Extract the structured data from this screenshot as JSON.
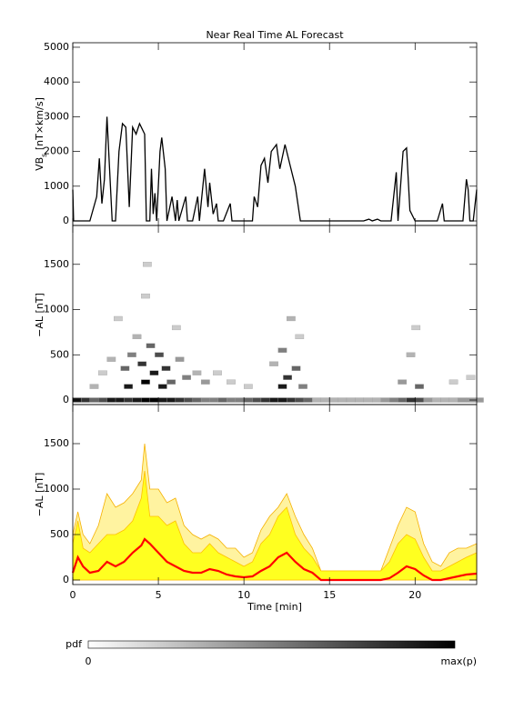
{
  "chart_data": [
    {
      "type": "line",
      "title": "Near Real Time AL Forecast",
      "ylabel": {
        "main": "VB",
        "sub": "s",
        "unit": " [nT×km/s]"
      },
      "xlim": [
        0,
        23.6
      ],
      "xticks": [
        0,
        5,
        10,
        15,
        20
      ],
      "ylim": [
        -130,
        5130
      ],
      "yticks": [
        0,
        1000,
        2000,
        3000,
        4000,
        5000
      ],
      "color": "#000000",
      "x": [
        0,
        0.05,
        1.0,
        1.4,
        1.55,
        1.7,
        1.85,
        2.0,
        2.2,
        2.3,
        2.5,
        2.7,
        2.9,
        3.1,
        3.3,
        3.5,
        3.7,
        3.9,
        4.2,
        4.3,
        4.5,
        4.6,
        4.7,
        4.8,
        4.9,
        5.1,
        5.2,
        5.4,
        5.5,
        5.8,
        6.0,
        6.1,
        6.2,
        6.6,
        6.7,
        7.0,
        7.3,
        7.4,
        7.7,
        7.9,
        8.0,
        8.2,
        8.4,
        8.5,
        8.8,
        9.2,
        9.3,
        10.0,
        10.5,
        10.6,
        10.8,
        11.0,
        11.2,
        11.4,
        11.6,
        11.9,
        12.1,
        12.4,
        12.7,
        13.0,
        13.3,
        17.0,
        17.3,
        17.5,
        17.8,
        18.0,
        18.6,
        18.9,
        19.0,
        19.3,
        19.5,
        19.7,
        20.0,
        21.3,
        21.6,
        21.7,
        22.8,
        23.0,
        23.1,
        23.2,
        23.4,
        23.6
      ],
      "values": [
        900,
        0,
        0,
        700,
        1800,
        500,
        1200,
        3000,
        1000,
        0,
        0,
        2000,
        2800,
        2700,
        400,
        2700,
        2500,
        2800,
        2500,
        0,
        0,
        1500,
        200,
        800,
        0,
        2000,
        2400,
        1500,
        0,
        700,
        0,
        600,
        0,
        700,
        0,
        0,
        700,
        0,
        1500,
        400,
        1100,
        200,
        500,
        0,
        0,
        500,
        0,
        0,
        0,
        700,
        400,
        1600,
        1800,
        1100,
        2000,
        2200,
        1500,
        2200,
        1600,
        1000,
        0,
        0,
        50,
        0,
        50,
        0,
        0,
        1400,
        0,
        2000,
        2100,
        300,
        0,
        0,
        500,
        0,
        0,
        1200,
        900,
        0,
        0,
        900
      ]
    },
    {
      "type": "heatmap",
      "ylabel": "−AL [nT]",
      "xlim": [
        0,
        23.6
      ],
      "xticks": [
        0,
        5,
        10,
        15,
        20
      ],
      "ylim": [
        -50,
        1930
      ],
      "yticks": [
        0,
        500,
        1000,
        1500
      ],
      "cells": {
        "x": [
          0,
          0.5,
          1,
          1.5,
          2,
          2.5,
          3,
          3.5,
          4,
          4.5,
          5,
          5.5,
          6,
          6.5,
          7,
          7.5,
          8,
          8.5,
          9,
          9.5,
          10,
          10.5,
          11,
          11.5,
          12,
          12.5,
          13,
          13.5,
          14,
          14.5,
          15,
          15.5,
          16,
          16.5,
          17,
          17.5,
          18,
          18.5,
          19,
          19.5,
          20,
          20.5,
          21,
          21.5,
          22,
          22.5,
          23,
          23.5,
          1,
          1.5,
          2,
          2.4,
          2.8,
          3.2,
          3.5,
          3.8,
          4.0,
          4.1,
          4.3,
          4.5,
          4.8,
          5.2,
          5.5,
          5.8,
          6.0,
          6.4,
          7,
          7.5,
          8.2,
          9,
          10,
          11.5,
          12,
          12.3,
          12.5,
          12.8,
          13.2,
          13,
          19,
          19.5,
          19.8,
          20,
          22,
          23,
          3,
          4,
          5,
          12
        ],
        "y": [
          0,
          0,
          0,
          0,
          0,
          0,
          0,
          0,
          0,
          0,
          0,
          0,
          0,
          0,
          0,
          0,
          0,
          0,
          0,
          0,
          0,
          0,
          0,
          0,
          0,
          0,
          0,
          0,
          0,
          0,
          0,
          0,
          0,
          0,
          0,
          0,
          0,
          0,
          0,
          0,
          0,
          0,
          0,
          0,
          0,
          0,
          0,
          0,
          150,
          300,
          450,
          900,
          350,
          500,
          700,
          400,
          1150,
          1500,
          600,
          300,
          500,
          350,
          200,
          800,
          450,
          250,
          300,
          200,
          300,
          200,
          150,
          400,
          550,
          250,
          900,
          350,
          150,
          700,
          200,
          500,
          800,
          150,
          200,
          250,
          150,
          200,
          150,
          150
        ],
        "p": [
          0.9,
          0.8,
          0.6,
          0.7,
          0.9,
          0.9,
          0.8,
          0.9,
          1,
          1,
          0.9,
          0.9,
          0.8,
          0.7,
          0.6,
          0.5,
          0.5,
          0.6,
          0.5,
          0.5,
          0.6,
          0.7,
          0.8,
          0.9,
          0.9,
          0.8,
          0.7,
          0.6,
          0.3,
          0.3,
          0.3,
          0.3,
          0.3,
          0.3,
          0.3,
          0.3,
          0.4,
          0.5,
          0.6,
          0.8,
          0.7,
          0.4,
          0.3,
          0.3,
          0.3,
          0.4,
          0.4,
          0.4,
          0.3,
          0.2,
          0.3,
          0.2,
          0.6,
          0.5,
          0.3,
          0.8,
          0.2,
          0.2,
          0.6,
          0.9,
          0.7,
          0.8,
          0.6,
          0.2,
          0.4,
          0.5,
          0.3,
          0.4,
          0.2,
          0.2,
          0.2,
          0.3,
          0.5,
          0.8,
          0.3,
          0.6,
          0.5,
          0.2,
          0.4,
          0.3,
          0.2,
          0.6,
          0.2,
          0.2,
          0.9,
          1.0,
          0.9,
          0.9
        ]
      }
    },
    {
      "type": "area",
      "ylabel": "−AL [nT]",
      "xlabel": "Time [min]",
      "xlim": [
        0,
        23.6
      ],
      "xticks": [
        0,
        5,
        10,
        15,
        20
      ],
      "ylim": [
        -50,
        1930
      ],
      "yticks": [
        0,
        500,
        1000,
        1500
      ],
      "x": [
        0,
        0.3,
        0.6,
        1,
        1.5,
        2,
        2.5,
        3,
        3.5,
        4,
        4.2,
        4.5,
        5,
        5.5,
        6,
        6.5,
        7,
        7.5,
        8,
        8.5,
        9,
        9.5,
        10,
        10.5,
        11,
        11.5,
        12,
        12.5,
        13,
        13.5,
        14,
        14.5,
        15,
        16,
        17,
        18,
        18.5,
        19,
        19.5,
        20,
        20.5,
        21,
        21.5,
        22,
        22.5,
        23,
        23.6
      ],
      "series": [
        {
          "color": "#f5b000",
          "values": [
            500,
            750,
            500,
            400,
            600,
            950,
            800,
            850,
            950,
            1100,
            1500,
            1000,
            1000,
            850,
            900,
            600,
            500,
            450,
            500,
            450,
            350,
            350,
            250,
            300,
            550,
            700,
            800,
            950,
            700,
            500,
            350,
            100,
            100,
            100,
            100,
            100,
            350,
            600,
            800,
            750,
            400,
            200,
            150,
            300,
            350,
            350,
            400
          ]
        },
        {
          "color": "#ffff20",
          "values": [
            400,
            650,
            350,
            300,
            400,
            500,
            500,
            550,
            650,
            900,
            1200,
            700,
            700,
            600,
            650,
            400,
            300,
            300,
            400,
            300,
            250,
            200,
            150,
            200,
            400,
            500,
            700,
            800,
            500,
            350,
            250,
            100,
            100,
            100,
            100,
            100,
            200,
            400,
            500,
            450,
            250,
            100,
            100,
            150,
            200,
            250,
            300
          ]
        },
        {
          "color": "#ff0000",
          "values": [
            80,
            250,
            150,
            80,
            100,
            200,
            150,
            200,
            300,
            380,
            450,
            400,
            300,
            200,
            150,
            100,
            80,
            80,
            120,
            100,
            60,
            40,
            30,
            40,
            100,
            150,
            250,
            300,
            200,
            120,
            80,
            0,
            0,
            0,
            0,
            0,
            20,
            80,
            150,
            120,
            50,
            0,
            0,
            20,
            40,
            60,
            70
          ]
        }
      ]
    }
  ],
  "colorbar": {
    "label": "pdf",
    "min_label": "0",
    "max_label": "max(p)"
  }
}
